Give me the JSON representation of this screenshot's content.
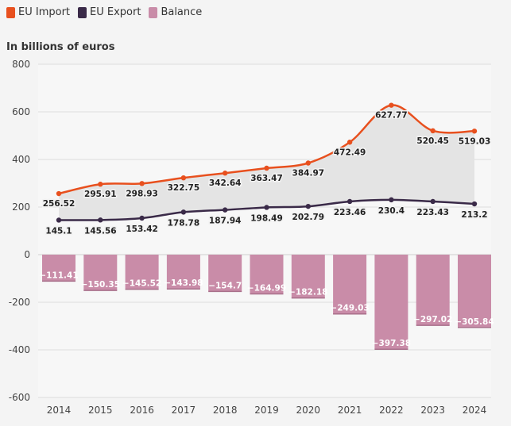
{
  "legend": [
    {
      "label": "EU Import",
      "color": "#e8501e"
    },
    {
      "label": "EU Export",
      "color": "#3a2a48"
    },
    {
      "label": "Balance",
      "color": "#c98ca8"
    }
  ],
  "unit_label": "In billions of euros",
  "chart_data": {
    "type": "line",
    "categories": [
      "2014",
      "2015",
      "2016",
      "2017",
      "2018",
      "2019",
      "2020",
      "2021",
      "2022",
      "2023",
      "2024"
    ],
    "series": [
      {
        "name": "EU Import",
        "type": "line",
        "color": "#e8501e",
        "values": [
          256.52,
          295.91,
          298.93,
          322.75,
          342.64,
          363.47,
          384.97,
          472.49,
          627.77,
          520.45,
          519.03
        ]
      },
      {
        "name": "EU Export",
        "type": "line",
        "color": "#3a2a48",
        "values": [
          145.1,
          145.56,
          153.42,
          178.78,
          187.94,
          198.49,
          202.79,
          223.46,
          230.4,
          223.43,
          213.2
        ]
      },
      {
        "name": "Balance",
        "type": "bar",
        "color": "#c98ca8",
        "values": [
          -111.41,
          -150.35,
          -145.52,
          -143.98,
          -154.7,
          -164.99,
          -182.18,
          -249.03,
          -397.38,
          -297.02,
          -305.84
        ]
      }
    ],
    "ylim": [
      -600,
      800
    ],
    "yticks": [
      800,
      600,
      400,
      200,
      0,
      -200,
      -400,
      -600
    ],
    "grid": true,
    "legend_position": "top-left"
  }
}
